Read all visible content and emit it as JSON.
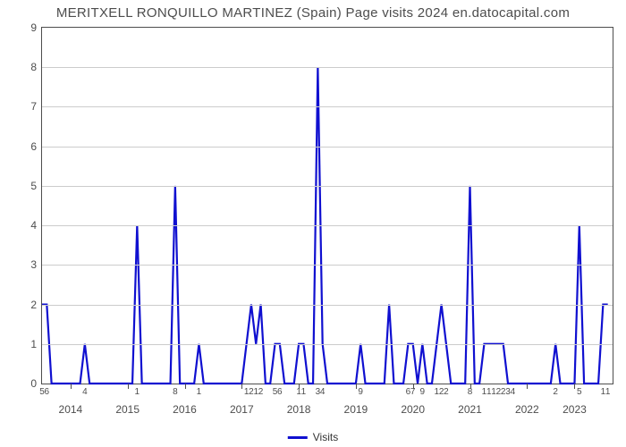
{
  "chart": {
    "type": "line",
    "title": "MERITXELL RONQUILLO MARTINEZ (Spain) Page visits 2024 en.datocapital.com",
    "title_fontsize": 15,
    "title_color": "#4d4d4d",
    "background_color": "#ffffff",
    "border_color": "#4d4d4d",
    "grid_color": "#cccccc",
    "ylim": [
      0,
      9
    ],
    "ytick_step": 1,
    "yticks": [
      0,
      1,
      2,
      3,
      4,
      5,
      6,
      7,
      8,
      9
    ],
    "ytick_fontsize": 12,
    "xlim_months": [
      0,
      120
    ],
    "year_ticks": [
      {
        "pos_month": 6,
        "label": "2014"
      },
      {
        "pos_month": 18,
        "label": "2015"
      },
      {
        "pos_month": 30,
        "label": "2016"
      },
      {
        "pos_month": 42,
        "label": "2017"
      },
      {
        "pos_month": 54,
        "label": "2018"
      },
      {
        "pos_month": 66,
        "label": "2019"
      },
      {
        "pos_month": 78,
        "label": "2020"
      },
      {
        "pos_month": 90,
        "label": "2021"
      },
      {
        "pos_month": 102,
        "label": "2022"
      },
      {
        "pos_month": 112,
        "label": "2023"
      }
    ],
    "minor_labels": [
      {
        "pos_month": 0,
        "text": "5"
      },
      {
        "pos_month": 1,
        "text": "6"
      },
      {
        "pos_month": 9,
        "text": "4"
      },
      {
        "pos_month": 20,
        "text": "1"
      },
      {
        "pos_month": 28,
        "text": "8"
      },
      {
        "pos_month": 33,
        "text": "1"
      },
      {
        "pos_month": 43,
        "text": "1"
      },
      {
        "pos_month": 44,
        "text": "2"
      },
      {
        "pos_month": 45,
        "text": "1"
      },
      {
        "pos_month": 46,
        "text": "2"
      },
      {
        "pos_month": 49,
        "text": "5"
      },
      {
        "pos_month": 50,
        "text": "6"
      },
      {
        "pos_month": 54,
        "text": "1"
      },
      {
        "pos_month": 55,
        "text": "1"
      },
      {
        "pos_month": 58,
        "text": "3"
      },
      {
        "pos_month": 59,
        "text": "4"
      },
      {
        "pos_month": 67,
        "text": "9"
      },
      {
        "pos_month": 77,
        "text": "6"
      },
      {
        "pos_month": 78,
        "text": "7"
      },
      {
        "pos_month": 80,
        "text": "9"
      },
      {
        "pos_month": 83,
        "text": "1"
      },
      {
        "pos_month": 84,
        "text": "2"
      },
      {
        "pos_month": 85,
        "text": "2"
      },
      {
        "pos_month": 90,
        "text": "8"
      },
      {
        "pos_month": 93,
        "text": "1"
      },
      {
        "pos_month": 94,
        "text": "1"
      },
      {
        "pos_month": 95,
        "text": "1"
      },
      {
        "pos_month": 96,
        "text": "2"
      },
      {
        "pos_month": 97,
        "text": "2"
      },
      {
        "pos_month": 98,
        "text": "3"
      },
      {
        "pos_month": 99,
        "text": "4"
      },
      {
        "pos_month": 108,
        "text": "2"
      },
      {
        "pos_month": 113,
        "text": "5"
      },
      {
        "pos_month": 118,
        "text": "1"
      },
      {
        "pos_month": 119,
        "text": "1"
      }
    ],
    "series": {
      "label": "Visits",
      "color": "#1010d0",
      "line_width": 2.2,
      "points": [
        [
          0,
          2
        ],
        [
          1,
          2
        ],
        [
          2,
          0
        ],
        [
          3,
          0
        ],
        [
          4,
          0
        ],
        [
          5,
          0
        ],
        [
          6,
          0
        ],
        [
          7,
          0
        ],
        [
          8,
          0
        ],
        [
          9,
          1
        ],
        [
          10,
          0
        ],
        [
          11,
          0
        ],
        [
          12,
          0
        ],
        [
          13,
          0
        ],
        [
          14,
          0
        ],
        [
          15,
          0
        ],
        [
          16,
          0
        ],
        [
          17,
          0
        ],
        [
          18,
          0
        ],
        [
          19,
          0
        ],
        [
          20,
          4
        ],
        [
          21,
          0
        ],
        [
          22,
          0
        ],
        [
          23,
          0
        ],
        [
          24,
          0
        ],
        [
          25,
          0
        ],
        [
          26,
          0
        ],
        [
          27,
          0
        ],
        [
          28,
          5
        ],
        [
          29,
          0
        ],
        [
          30,
          0
        ],
        [
          31,
          0
        ],
        [
          32,
          0
        ],
        [
          33,
          1
        ],
        [
          34,
          0
        ],
        [
          35,
          0
        ],
        [
          36,
          0
        ],
        [
          37,
          0
        ],
        [
          38,
          0
        ],
        [
          39,
          0
        ],
        [
          40,
          0
        ],
        [
          41,
          0
        ],
        [
          42,
          0
        ],
        [
          43,
          1
        ],
        [
          44,
          2
        ],
        [
          45,
          1
        ],
        [
          46,
          2
        ],
        [
          47,
          0
        ],
        [
          48,
          0
        ],
        [
          49,
          1
        ],
        [
          50,
          1
        ],
        [
          51,
          0
        ],
        [
          52,
          0
        ],
        [
          53,
          0
        ],
        [
          54,
          1
        ],
        [
          55,
          1
        ],
        [
          56,
          0
        ],
        [
          57,
          0
        ],
        [
          58,
          8
        ],
        [
          59,
          1
        ],
        [
          60,
          0
        ],
        [
          61,
          0
        ],
        [
          62,
          0
        ],
        [
          63,
          0
        ],
        [
          64,
          0
        ],
        [
          65,
          0
        ],
        [
          66,
          0
        ],
        [
          67,
          1
        ],
        [
          68,
          0
        ],
        [
          69,
          0
        ],
        [
          70,
          0
        ],
        [
          71,
          0
        ],
        [
          72,
          0
        ],
        [
          73,
          2
        ],
        [
          74,
          0
        ],
        [
          75,
          0
        ],
        [
          76,
          0
        ],
        [
          77,
          1
        ],
        [
          78,
          1
        ],
        [
          79,
          0
        ],
        [
          80,
          1
        ],
        [
          81,
          0
        ],
        [
          82,
          0
        ],
        [
          83,
          1
        ],
        [
          84,
          2
        ],
        [
          85,
          1
        ],
        [
          86,
          0
        ],
        [
          87,
          0
        ],
        [
          88,
          0
        ],
        [
          89,
          0
        ],
        [
          90,
          5
        ],
        [
          91,
          0
        ],
        [
          92,
          0
        ],
        [
          93,
          1
        ],
        [
          94,
          1
        ],
        [
          95,
          1
        ],
        [
          96,
          1
        ],
        [
          97,
          1
        ],
        [
          98,
          0
        ],
        [
          99,
          0
        ],
        [
          100,
          0
        ],
        [
          101,
          0
        ],
        [
          102,
          0
        ],
        [
          103,
          0
        ],
        [
          104,
          0
        ],
        [
          105,
          0
        ],
        [
          106,
          0
        ],
        [
          107,
          0
        ],
        [
          108,
          1
        ],
        [
          109,
          0
        ],
        [
          110,
          0
        ],
        [
          111,
          0
        ],
        [
          112,
          0
        ],
        [
          113,
          4
        ],
        [
          114,
          0
        ],
        [
          115,
          0
        ],
        [
          116,
          0
        ],
        [
          117,
          0
        ],
        [
          118,
          2
        ],
        [
          119,
          2
        ]
      ]
    },
    "legend": {
      "label": "Visits",
      "swatch_color": "#1010d0"
    }
  }
}
